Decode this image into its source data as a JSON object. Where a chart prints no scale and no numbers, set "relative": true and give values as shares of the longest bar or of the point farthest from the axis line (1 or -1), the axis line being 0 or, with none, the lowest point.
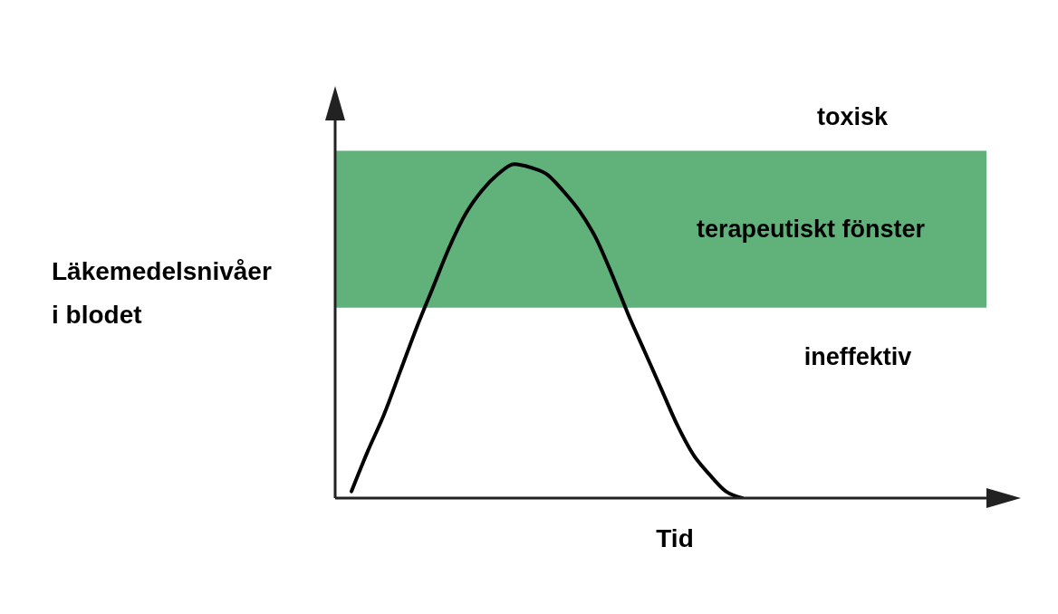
{
  "chart_data": {
    "type": "line",
    "relative": true,
    "xlabel": "Tid",
    "ylabel": "Läkemedelsnivåer\ni blodet",
    "categories": [
      null,
      null,
      null,
      null,
      null,
      null,
      null,
      null,
      null,
      null,
      null,
      null,
      null,
      null,
      null,
      null,
      null,
      null,
      null,
      null,
      null,
      null,
      null,
      null,
      null,
      null,
      null,
      null,
      null,
      null,
      null,
      null,
      null,
      null,
      null,
      null,
      null,
      null,
      null,
      null,
      null
    ],
    "series": [
      {
        "color": "#000000",
        "values": [
          null,
          0.02,
          0.14,
          0.25,
          0.38,
          0.51,
          0.63,
          0.75,
          0.85,
          0.92,
          0.97,
          1,
          0.99,
          0.97,
          0.92,
          0.86,
          0.78,
          0.67,
          0.55,
          0.44,
          0.33,
          0.22,
          0.13,
          0.07,
          0.02,
          0,
          null,
          null,
          null,
          null,
          null,
          null,
          null,
          null,
          null,
          null,
          null,
          null,
          null,
          null,
          null
        ]
      }
    ],
    "bands": [
      {
        "axis": "y",
        "from": 0.57,
        "to": 1.04,
        "label": "terapeutiskt fönster",
        "color": "#60b27a"
      }
    ],
    "annotations": [
      "toxisk",
      "ineffektiv"
    ]
  }
}
